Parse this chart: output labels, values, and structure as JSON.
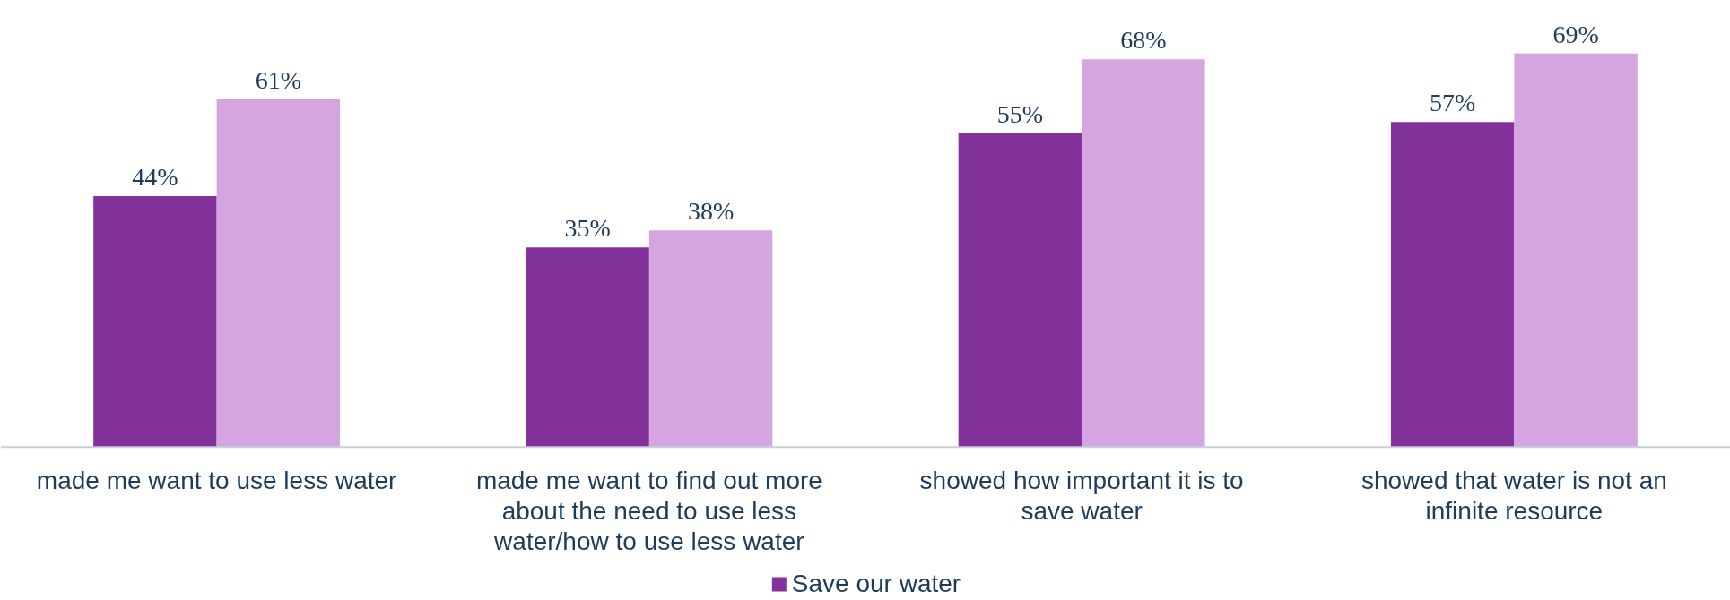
{
  "chart_data": {
    "type": "bar",
    "categories": [
      "made me want to use less water",
      "made me want to find out more about the need to use less water/how to use less water",
      "showed how important it is to save water",
      "showed that water is not an infinite resource"
    ],
    "series": [
      {
        "name": "Save our water",
        "color": "#84329b",
        "values": [
          44,
          35,
          55,
          57
        ],
        "value_labels": [
          "44%",
          "35%",
          "55%",
          "57%"
        ]
      },
      {
        "color": "#d4a5e0",
        "values": [
          61,
          38,
          68,
          69
        ],
        "value_labels": [
          "61%",
          "38%",
          "68%",
          "69%"
        ]
      }
    ],
    "legend": "bottom",
    "grid": false
  }
}
